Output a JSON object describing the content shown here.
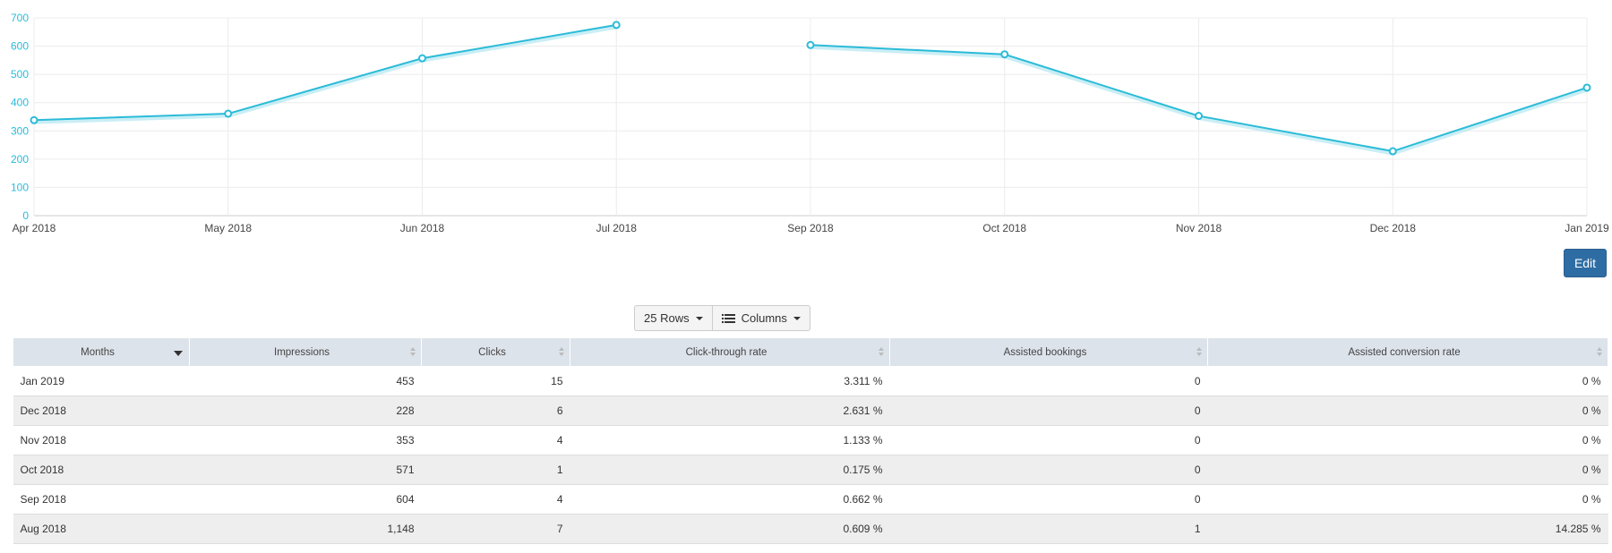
{
  "chart_data": {
    "type": "line",
    "x": [
      "Apr 2018",
      "May 2018",
      "Jun 2018",
      "Jul 2018",
      "Sep 2018",
      "Oct 2018",
      "Nov 2018",
      "Dec 2018",
      "Jan 2019"
    ],
    "series": [
      {
        "values": [
          338,
          361,
          557,
          675,
          604,
          571,
          353,
          228,
          453
        ]
      }
    ],
    "segments_break_after_index": 3,
    "ylim": [
      0,
      700
    ],
    "yticks": [
      0,
      100,
      200,
      300,
      400,
      500,
      600,
      700
    ],
    "grid": true,
    "line_color": "#2bbbd8",
    "axis_label_color": "#2bbbd8",
    "title": "",
    "xlabel": "",
    "ylabel": ""
  },
  "toolbar": {
    "edit_label": "Edit",
    "rows_label": "25 Rows",
    "columns_label": "Columns"
  },
  "table": {
    "columns": [
      "Months",
      "Impressions",
      "Clicks",
      "Click-through rate",
      "Assisted bookings",
      "Assisted conversion rate"
    ],
    "rows": [
      [
        "Jan 2019",
        "453",
        "15",
        "3.311 %",
        "0",
        "0 %"
      ],
      [
        "Dec 2018",
        "228",
        "6",
        "2.631 %",
        "0",
        "0 %"
      ],
      [
        "Nov 2018",
        "353",
        "4",
        "1.133 %",
        "0",
        "0 %"
      ],
      [
        "Oct 2018",
        "571",
        "1",
        "0.175 %",
        "0",
        "0 %"
      ],
      [
        "Sep 2018",
        "604",
        "4",
        "0.662 %",
        "0",
        "0 %"
      ],
      [
        "Aug 2018",
        "1,148",
        "7",
        "0.609 %",
        "1",
        "14.285 %"
      ]
    ]
  }
}
